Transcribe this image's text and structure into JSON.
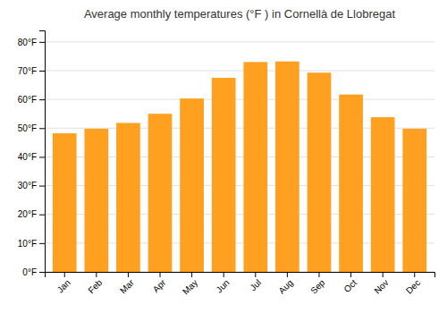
{
  "chart_data": {
    "type": "bar",
    "title": "Average monthly temperatures (°F ) in Cornellà  de Llobregat",
    "categories": [
      "Jan",
      "Feb",
      "Mar",
      "Apr",
      "May",
      "Jun",
      "Jul",
      "Aug",
      "Sep",
      "Oct",
      "Nov",
      "Dec"
    ],
    "values": [
      48.2,
      49.8,
      51.8,
      55.0,
      60.3,
      67.5,
      73.0,
      73.2,
      69.3,
      61.7,
      53.8,
      49.8
    ],
    "color": "#FFA020",
    "ylim": [
      0,
      84
    ],
    "yticks": [
      {
        "value": 0,
        "label": "0°F"
      },
      {
        "value": 10,
        "label": "10°F"
      },
      {
        "value": 20,
        "label": "20°F"
      },
      {
        "value": 30,
        "label": "30°F"
      },
      {
        "value": 40,
        "label": "40°F"
      },
      {
        "value": 50,
        "label": "50°F"
      },
      {
        "value": 60,
        "label": "60°F"
      },
      {
        "value": 70,
        "label": "70°F"
      },
      {
        "value": 80,
        "label": "80°F"
      }
    ],
    "grid": true
  }
}
